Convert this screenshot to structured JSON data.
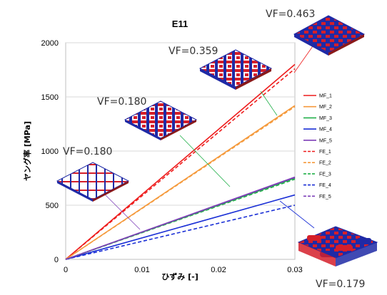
{
  "chart_data": {
    "type": "line",
    "title": "E11",
    "xlabel": "ひずみ [-]",
    "ylabel": "ヤング率 [MPa]",
    "xlim": [
      0,
      0.03
    ],
    "ylim": [
      0,
      2000
    ],
    "x_ticks": [
      "0",
      "0.01",
      "0.02",
      "0.03"
    ],
    "y_ticks": [
      "0",
      "500",
      "1000",
      "1500",
      "2000"
    ],
    "grid": "horizontal",
    "legend": "right",
    "series": [
      {
        "name": "MF_1",
        "style": "solid",
        "color": "#ee1c1c",
        "x": [
          0,
          0.03
        ],
        "y": [
          0,
          1800
        ]
      },
      {
        "name": "MF_2",
        "style": "solid",
        "color": "#f59a3c",
        "x": [
          0,
          0.03
        ],
        "y": [
          0,
          1420
        ]
      },
      {
        "name": "MF_3",
        "style": "solid",
        "color": "#22b04a",
        "x": [
          0,
          0.03
        ],
        "y": [
          0,
          750
        ]
      },
      {
        "name": "MF_4",
        "style": "solid",
        "color": "#1a2fd6",
        "x": [
          0,
          0.03
        ],
        "y": [
          0,
          595
        ]
      },
      {
        "name": "MF_5",
        "style": "solid",
        "color": "#7e3fb8",
        "x": [
          0,
          0.03
        ],
        "y": [
          0,
          760
        ]
      },
      {
        "name": "FE_1",
        "style": "dashed",
        "color": "#ee1c1c",
        "x": [
          0,
          0.03
        ],
        "y": [
          0,
          1760
        ]
      },
      {
        "name": "FE_2",
        "style": "dashed",
        "color": "#f59a3c",
        "x": [
          0,
          0.03
        ],
        "y": [
          0,
          1410
        ]
      },
      {
        "name": "FE_3",
        "style": "dashed",
        "color": "#22b04a",
        "x": [
          0,
          0.03
        ],
        "y": [
          0,
          740
        ]
      },
      {
        "name": "FE_4",
        "style": "dashed",
        "color": "#1a2fd6",
        "x": [
          0,
          0.03
        ],
        "y": [
          0,
          500
        ]
      },
      {
        "name": "FE_5",
        "style": "dashed",
        "color": "#7e3fb8",
        "x": [
          0,
          0.03
        ],
        "y": [
          0,
          755
        ]
      }
    ],
    "annotations": [
      {
        "text": "VF=0.463",
        "target_series": "MF_1"
      },
      {
        "text": "VF=0.359",
        "target_series": "MF_2"
      },
      {
        "text": "VF=0.180",
        "target_series": "MF_3"
      },
      {
        "text": "VF=0.180",
        "target_series": "MF_5"
      },
      {
        "text": "VF=0.179",
        "target_series": "MF_4"
      }
    ]
  },
  "colors": {
    "fiber_red": "#d51f2a",
    "fiber_blue": "#1f2aa6",
    "grid": "#d9d9d9"
  }
}
